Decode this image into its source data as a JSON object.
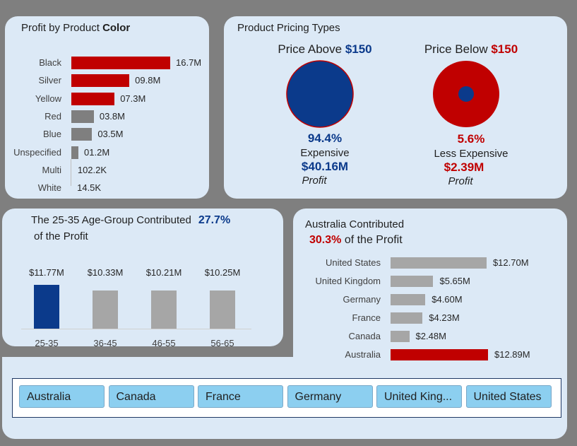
{
  "color_panel": {
    "title_prefix": "Profit by Product ",
    "title_bold": "Color",
    "items": [
      {
        "label": "Black",
        "value_label": "16.7M",
        "value": 16.7,
        "color": "#c00000"
      },
      {
        "label": "Silver",
        "value_label": "09.8M",
        "value": 9.8,
        "color": "#c00000"
      },
      {
        "label": "Yellow",
        "value_label": "07.3M",
        "value": 7.3,
        "color": "#c00000"
      },
      {
        "label": "Red",
        "value_label": "03.8M",
        "value": 3.8,
        "color": "#7f7f7f"
      },
      {
        "label": "Blue",
        "value_label": "03.5M",
        "value": 3.5,
        "color": "#7f7f7f"
      },
      {
        "label": "Unspecified",
        "value_label": "01.2M",
        "value": 1.2,
        "color": "#7f7f7f"
      },
      {
        "label": "Multi",
        "value_label": "102.2K",
        "value": 0.1022,
        "color": "#7f7f7f"
      },
      {
        "label": "White",
        "value_label": "14.5K",
        "value": 0.0145,
        "color": "#7f7f7f"
      }
    ]
  },
  "pricing_panel": {
    "title": "Product Pricing Types",
    "above": {
      "head_prefix": "Price Above ",
      "head_value": "$150",
      "pct": "94.4%",
      "label": "Expensive",
      "amount": "$40.16M",
      "profit": "Profit",
      "share": 0.944,
      "color": "#0b3a8b"
    },
    "below": {
      "head_prefix": "Price Below ",
      "head_value": "$150",
      "pct": "5.6%",
      "label": "Less Expensive",
      "amount": "$2.39M",
      "profit": "Profit",
      "share": 0.056,
      "color": "#c00000"
    }
  },
  "age_panel": {
    "title_prefix": "The 25-35 Age-Group Contributed",
    "title_pct": "27.7%",
    "title_suffix": "of the Profit",
    "bars": [
      {
        "category": "25-35",
        "value_label": "$11.77M",
        "value": 11.77,
        "color": "#0b3a8b"
      },
      {
        "category": "36-45",
        "value_label": "$10.33M",
        "value": 10.33,
        "color": "#a6a6a6"
      },
      {
        "category": "46-55",
        "value_label": "$10.21M",
        "value": 10.21,
        "color": "#a6a6a6"
      },
      {
        "category": "56-65",
        "value_label": "$10.25M",
        "value": 10.25,
        "color": "#a6a6a6"
      }
    ]
  },
  "country_panel": {
    "title": "Australia Contributed",
    "title_pct": "30.3%",
    "title_suffix": " of the Profit",
    "bars": [
      {
        "country": "United States",
        "value_label": "$12.70M",
        "value": 12.7,
        "color": "#a6a6a6"
      },
      {
        "country": "United Kingdom",
        "value_label": "$5.65M",
        "value": 5.65,
        "color": "#a6a6a6"
      },
      {
        "country": "Germany",
        "value_label": "$4.60M",
        "value": 4.6,
        "color": "#a6a6a6"
      },
      {
        "country": "France",
        "value_label": "$4.23M",
        "value": 4.23,
        "color": "#a6a6a6"
      },
      {
        "country": "Canada",
        "value_label": "$2.48M",
        "value": 2.48,
        "color": "#a6a6a6"
      },
      {
        "country": "Australia",
        "value_label": "$12.89M",
        "value": 12.89,
        "color": "#c00000"
      }
    ]
  },
  "slicer": {
    "items": [
      "Australia",
      "Canada",
      "France",
      "Germany",
      "United King...",
      "United States"
    ]
  },
  "chart_data": [
    {
      "type": "bar",
      "orientation": "horizontal",
      "title": "Profit by Product Color",
      "categories": [
        "Black",
        "Silver",
        "Yellow",
        "Red",
        "Blue",
        "Unspecified",
        "Multi",
        "White"
      ],
      "values": [
        16700000,
        9800000,
        7300000,
        3800000,
        3500000,
        1200000,
        102200,
        14500
      ]
    },
    {
      "type": "pie",
      "title": "Price Above $150",
      "slices": [
        {
          "name": "Expensive",
          "value": 94.4
        }
      ]
    },
    {
      "type": "pie",
      "title": "Price Below $150",
      "slices": [
        {
          "name": "Less Expensive",
          "value": 5.6
        }
      ]
    },
    {
      "type": "bar",
      "title": "The 25-35 Age-Group Contributed 27.7% of the Profit",
      "categories": [
        "25-35",
        "36-45",
        "46-55",
        "56-65"
      ],
      "values": [
        11.77,
        10.33,
        10.21,
        10.25
      ]
    },
    {
      "type": "bar",
      "orientation": "horizontal",
      "title": "Australia Contributed 30.3% of the Profit",
      "categories": [
        "United States",
        "United Kingdom",
        "Germany",
        "France",
        "Canada",
        "Australia"
      ],
      "values": [
        12.7,
        5.65,
        4.6,
        4.23,
        2.48,
        12.89
      ]
    }
  ]
}
